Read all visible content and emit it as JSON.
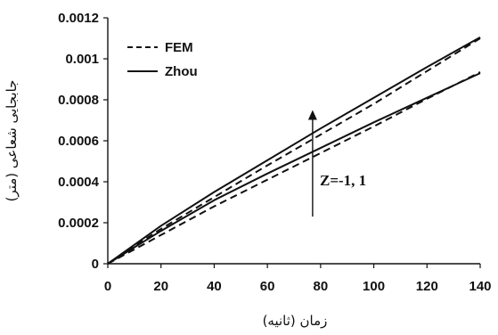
{
  "chart_data": {
    "type": "line",
    "title": "",
    "xlabel": "زمان (ثانیه)",
    "ylabel": "جابجایی شعاعی (متر)",
    "xlim": [
      0,
      140
    ],
    "ylim": [
      0,
      0.0012
    ],
    "x_ticks": [
      "0",
      "20",
      "40",
      "60",
      "80",
      "100",
      "120",
      "140"
    ],
    "y_ticks": [
      "0",
      "0.0002",
      "0.0004",
      "0.0006",
      "0.0008",
      "0.001",
      "0.0012"
    ],
    "grid": false,
    "legend_position": "top-left",
    "legend": [
      {
        "label": "FEM",
        "style": "dashed"
      },
      {
        "label": "Zhou",
        "style": "solid"
      }
    ],
    "annotation": {
      "text": "Z=-1, 1",
      "arrow_x": 77,
      "arrow_y_from": 0.00023,
      "arrow_y_to": 0.00075
    },
    "series": [
      {
        "group": "Zhou",
        "style": "solid",
        "x": [
          0,
          20,
          40,
          60,
          80,
          100,
          120,
          140
        ],
        "y": [
          0,
          0.000185,
          0.00035,
          0.000505,
          0.00066,
          0.00081,
          0.00096,
          0.001105
        ]
      },
      {
        "group": "FEM",
        "style": "dashed",
        "x": [
          0,
          20,
          40,
          60,
          80,
          100,
          120,
          140
        ],
        "y": [
          0,
          0.00017,
          0.000325,
          0.00048,
          0.00063,
          0.00078,
          0.00094,
          0.0011
        ]
      },
      {
        "group": "Zhou",
        "style": "solid",
        "x": [
          0,
          20,
          40,
          60,
          80,
          100,
          120,
          140
        ],
        "y": [
          0,
          0.00016,
          0.00031,
          0.00044,
          0.000565,
          0.00069,
          0.00081,
          0.00093
        ]
      },
      {
        "group": "FEM",
        "style": "dashed",
        "x": [
          0,
          20,
          40,
          60,
          80,
          100,
          120,
          140
        ],
        "y": [
          0,
          0.00014,
          0.00028,
          0.00041,
          0.00054,
          0.00067,
          0.000805,
          0.000935
        ]
      }
    ],
    "colors": {
      "line": "#111111",
      "axis": "#111111",
      "background": "#ffffff"
    }
  }
}
